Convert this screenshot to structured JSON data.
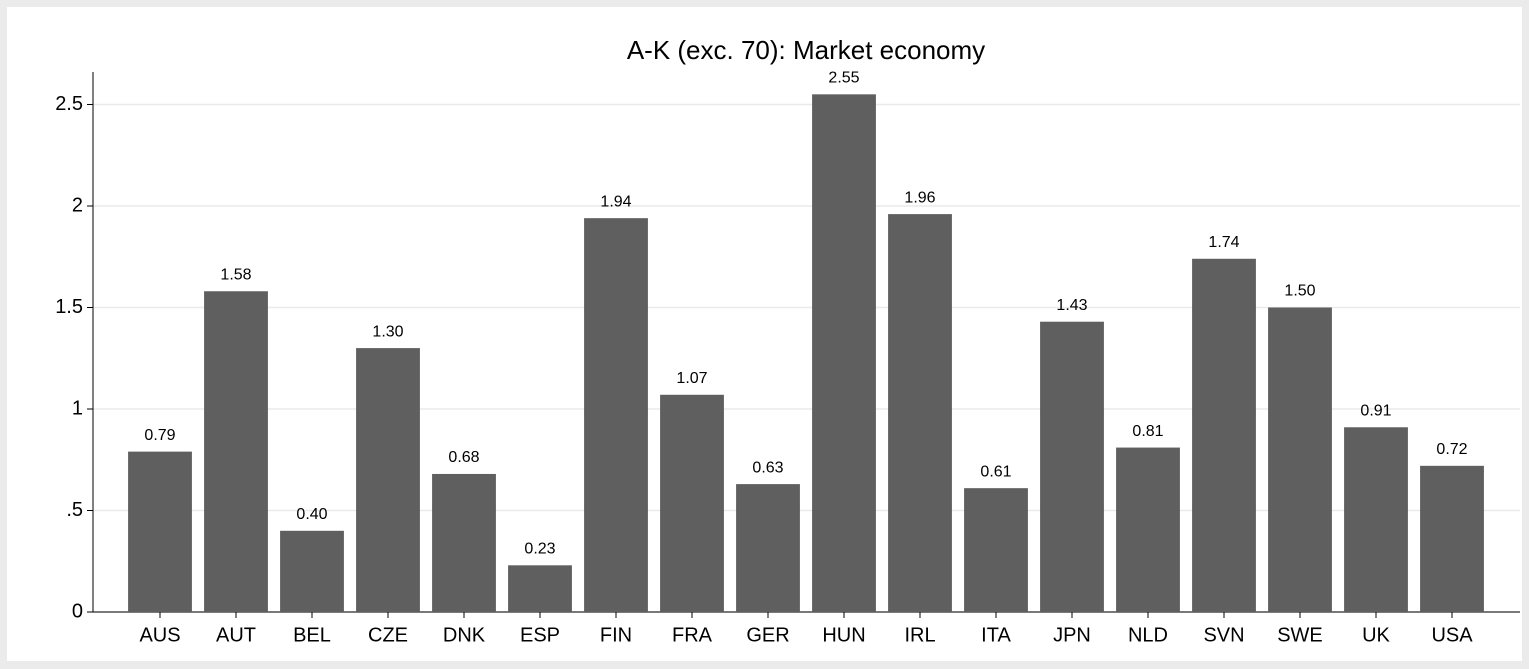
{
  "chart_data": {
    "type": "bar",
    "title": "A-K (exc. 70): Market economy",
    "categories": [
      "AUS",
      "AUT",
      "BEL",
      "CZE",
      "DNK",
      "ESP",
      "FIN",
      "FRA",
      "GER",
      "HUN",
      "IRL",
      "ITA",
      "JPN",
      "NLD",
      "SVN",
      "SWE",
      "UK",
      "USA"
    ],
    "values": [
      0.79,
      1.58,
      0.4,
      1.3,
      0.68,
      0.23,
      1.94,
      1.07,
      0.63,
      2.55,
      1.96,
      0.61,
      1.43,
      0.81,
      1.74,
      1.5,
      0.91,
      0.72
    ],
    "value_labels": [
      "0.79",
      "1.58",
      "0.40",
      "1.30",
      "0.68",
      "0.23",
      "1.94",
      "1.07",
      "0.63",
      "2.55",
      "1.96",
      "0.61",
      "1.43",
      "0.81",
      "1.74",
      "1.50",
      "0.91",
      "0.72"
    ],
    "color": "#5f5f5f",
    "ylim": [
      0,
      2.66
    ],
    "yticks": [
      0,
      {
        "value": 0.5,
        "label": ".5"
      },
      1,
      1.5,
      2,
      2.5
    ],
    "grid": true
  }
}
